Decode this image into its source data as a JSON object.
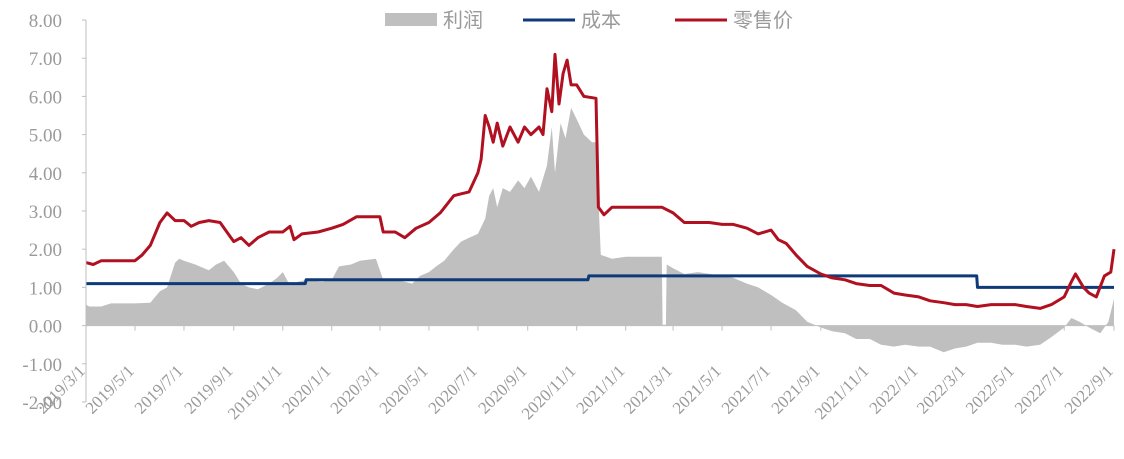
{
  "chart_data": {
    "type": "line",
    "x_dates": [
      "2019/3/1",
      "2019/5/1",
      "2019/7/1",
      "2019/9/1",
      "2019/11/1",
      "2020/1/1",
      "2020/3/1",
      "2020/5/1",
      "2020/7/1",
      "2020/9/1",
      "2020/11/1",
      "2021/1/1",
      "2021/3/1",
      "2021/5/1",
      "2021/7/1",
      "2021/9/1",
      "2021/11/1",
      "2022/1/1",
      "2022/3/1",
      "2022/5/1",
      "2022/7/1",
      "2022/9/1"
    ],
    "y_ticks": [
      "8.00",
      "7.00",
      "6.00",
      "5.00",
      "4.00",
      "3.00",
      "2.00",
      "1.00",
      "0.00",
      "-1.00",
      "-2.00"
    ],
    "ylim": [
      -2,
      8
    ],
    "legend_position": "top-center",
    "grid": false,
    "series": [
      {
        "name": "利润",
        "kind": "area",
        "color": "#bfbfbf",
        "points": [
          [
            "2019-03-01",
            0.55
          ],
          [
            "2019-03-05",
            0.5
          ],
          [
            "2019-03-20",
            0.5
          ],
          [
            "2019-04-01",
            0.58
          ],
          [
            "2019-05-01",
            0.58
          ],
          [
            "2019-05-20",
            0.6
          ],
          [
            "2019-06-01",
            0.9
          ],
          [
            "2019-06-10",
            1.0
          ],
          [
            "2019-06-20",
            1.65
          ],
          [
            "2019-06-25",
            1.75
          ],
          [
            "2019-07-01",
            1.7
          ],
          [
            "2019-07-15",
            1.6
          ],
          [
            "2019-08-01",
            1.45
          ],
          [
            "2019-08-10",
            1.6
          ],
          [
            "2019-08-20",
            1.7
          ],
          [
            "2019-09-01",
            1.4
          ],
          [
            "2019-09-10",
            1.1
          ],
          [
            "2019-09-20",
            1.0
          ],
          [
            "2019-10-01",
            0.95
          ],
          [
            "2019-10-15",
            1.1
          ],
          [
            "2019-10-25",
            1.25
          ],
          [
            "2019-11-01",
            1.4
          ],
          [
            "2019-11-10",
            1.05
          ],
          [
            "2019-11-20",
            1.15
          ],
          [
            "2019-12-01",
            1.2
          ],
          [
            "2019-12-20",
            1.15
          ],
          [
            "2020-01-01",
            1.2
          ],
          [
            "2020-01-10",
            1.55
          ],
          [
            "2020-01-25",
            1.6
          ],
          [
            "2020-02-05",
            1.7
          ],
          [
            "2020-02-25",
            1.75
          ],
          [
            "2020-03-05",
            1.2
          ],
          [
            "2020-03-20",
            1.2
          ],
          [
            "2020-04-01",
            1.15
          ],
          [
            "2020-04-10",
            1.1
          ],
          [
            "2020-04-20",
            1.3
          ],
          [
            "2020-05-01",
            1.4
          ],
          [
            "2020-05-10",
            1.55
          ],
          [
            "2020-05-20",
            1.7
          ],
          [
            "2020-06-01",
            2.0
          ],
          [
            "2020-06-10",
            2.2
          ],
          [
            "2020-06-20",
            2.3
          ],
          [
            "2020-07-01",
            2.4
          ],
          [
            "2020-07-10",
            2.8
          ],
          [
            "2020-07-15",
            3.4
          ],
          [
            "2020-07-20",
            3.6
          ],
          [
            "2020-07-25",
            3.1
          ],
          [
            "2020-08-01",
            3.6
          ],
          [
            "2020-08-10",
            3.5
          ],
          [
            "2020-08-20",
            3.8
          ],
          [
            "2020-08-28",
            3.6
          ],
          [
            "2020-09-05",
            3.9
          ],
          [
            "2020-09-15",
            3.5
          ],
          [
            "2020-09-25",
            4.2
          ],
          [
            "2020-10-01",
            5.2
          ],
          [
            "2020-10-05",
            4.0
          ],
          [
            "2020-10-12",
            5.3
          ],
          [
            "2020-10-18",
            4.9
          ],
          [
            "2020-10-25",
            5.7
          ],
          [
            "2020-11-01",
            5.4
          ],
          [
            "2020-11-10",
            5.0
          ],
          [
            "2020-11-20",
            4.8
          ],
          [
            "2020-11-25",
            4.8
          ],
          [
            "2020-12-01",
            1.85
          ],
          [
            "2020-12-15",
            1.75
          ],
          [
            "2021-01-01",
            1.8
          ],
          [
            "2021-02-15",
            1.8
          ],
          [
            "2021-02-16",
            0.02
          ],
          [
            "2021-02-20",
            0.02
          ],
          [
            "2021-02-21",
            1.6
          ],
          [
            "2021-03-01",
            1.5
          ],
          [
            "2021-03-15",
            1.35
          ],
          [
            "2021-04-01",
            1.4
          ],
          [
            "2021-05-01",
            1.3
          ],
          [
            "2021-05-15",
            1.25
          ],
          [
            "2021-06-01",
            1.1
          ],
          [
            "2021-06-15",
            1.0
          ],
          [
            "2021-07-01",
            0.8
          ],
          [
            "2021-07-15",
            0.6
          ],
          [
            "2021-08-01",
            0.4
          ],
          [
            "2021-08-15",
            0.1
          ],
          [
            "2021-09-01",
            -0.05
          ],
          [
            "2021-09-15",
            -0.15
          ],
          [
            "2021-10-01",
            -0.2
          ],
          [
            "2021-10-15",
            -0.35
          ],
          [
            "2021-11-01",
            -0.35
          ],
          [
            "2021-11-15",
            -0.5
          ],
          [
            "2021-12-01",
            -0.55
          ],
          [
            "2021-12-15",
            -0.5
          ],
          [
            "2022-01-01",
            -0.55
          ],
          [
            "2022-01-15",
            -0.55
          ],
          [
            "2022-02-01",
            -0.7
          ],
          [
            "2022-02-15",
            -0.6
          ],
          [
            "2022-03-01",
            -0.55
          ],
          [
            "2022-03-15",
            -0.45
          ],
          [
            "2022-04-01",
            -0.45
          ],
          [
            "2022-04-15",
            -0.5
          ],
          [
            "2022-05-01",
            -0.5
          ],
          [
            "2022-05-15",
            -0.55
          ],
          [
            "2022-06-01",
            -0.5
          ],
          [
            "2022-06-15",
            -0.3
          ],
          [
            "2022-07-01",
            -0.05
          ],
          [
            "2022-07-10",
            0.2
          ],
          [
            "2022-07-20",
            0.1
          ],
          [
            "2022-08-01",
            -0.05
          ],
          [
            "2022-08-15",
            -0.2
          ],
          [
            "2022-08-25",
            0.1
          ],
          [
            "2022-09-01",
            0.7
          ]
        ]
      },
      {
        "name": "成本",
        "kind": "line",
        "color": "#0f3a7a",
        "points": [
          [
            "2019-03-01",
            1.1
          ],
          [
            "2019-11-29",
            1.1
          ],
          [
            "2019-11-30",
            1.2
          ],
          [
            "2020-11-15",
            1.2
          ],
          [
            "2020-11-16",
            1.3
          ],
          [
            "2022-03-14",
            1.3
          ],
          [
            "2022-03-15",
            1.0
          ],
          [
            "2022-09-01",
            1.0
          ]
        ]
      },
      {
        "name": "零售价",
        "kind": "line",
        "color": "#b01020",
        "points": [
          [
            "2019-03-01",
            1.65
          ],
          [
            "2019-03-10",
            1.6
          ],
          [
            "2019-03-20",
            1.7
          ],
          [
            "2019-05-01",
            1.7
          ],
          [
            "2019-05-10",
            1.85
          ],
          [
            "2019-05-20",
            2.1
          ],
          [
            "2019-06-01",
            2.7
          ],
          [
            "2019-06-10",
            2.95
          ],
          [
            "2019-06-20",
            2.75
          ],
          [
            "2019-07-01",
            2.75
          ],
          [
            "2019-07-10",
            2.6
          ],
          [
            "2019-07-20",
            2.7
          ],
          [
            "2019-08-01",
            2.75
          ],
          [
            "2019-08-15",
            2.7
          ],
          [
            "2019-08-25",
            2.4
          ],
          [
            "2019-09-01",
            2.2
          ],
          [
            "2019-09-10",
            2.3
          ],
          [
            "2019-09-20",
            2.1
          ],
          [
            "2019-10-01",
            2.3
          ],
          [
            "2019-10-15",
            2.45
          ],
          [
            "2019-11-01",
            2.45
          ],
          [
            "2019-11-10",
            2.6
          ],
          [
            "2019-11-15",
            2.25
          ],
          [
            "2019-11-25",
            2.4
          ],
          [
            "2019-12-15",
            2.45
          ],
          [
            "2020-01-01",
            2.55
          ],
          [
            "2020-01-15",
            2.65
          ],
          [
            "2020-02-01",
            2.85
          ],
          [
            "2020-03-01",
            2.85
          ],
          [
            "2020-03-05",
            2.45
          ],
          [
            "2020-03-20",
            2.45
          ],
          [
            "2020-04-01",
            2.3
          ],
          [
            "2020-04-15",
            2.55
          ],
          [
            "2020-05-01",
            2.7
          ],
          [
            "2020-05-15",
            2.95
          ],
          [
            "2020-06-01",
            3.4
          ],
          [
            "2020-06-10",
            3.45
          ],
          [
            "2020-06-20",
            3.5
          ],
          [
            "2020-07-01",
            4.0
          ],
          [
            "2020-07-05",
            4.35
          ],
          [
            "2020-07-10",
            5.5
          ],
          [
            "2020-07-15",
            5.2
          ],
          [
            "2020-07-20",
            4.8
          ],
          [
            "2020-07-25",
            5.3
          ],
          [
            "2020-08-01",
            4.7
          ],
          [
            "2020-08-10",
            5.2
          ],
          [
            "2020-08-20",
            4.8
          ],
          [
            "2020-08-28",
            5.2
          ],
          [
            "2020-09-05",
            5.0
          ],
          [
            "2020-09-15",
            5.2
          ],
          [
            "2020-09-20",
            5.0
          ],
          [
            "2020-09-25",
            6.2
          ],
          [
            "2020-10-01",
            5.6
          ],
          [
            "2020-10-05",
            7.1
          ],
          [
            "2020-10-10",
            5.8
          ],
          [
            "2020-10-15",
            6.6
          ],
          [
            "2020-10-20",
            6.95
          ],
          [
            "2020-10-25",
            6.3
          ],
          [
            "2020-11-01",
            6.3
          ],
          [
            "2020-11-10",
            6.0
          ],
          [
            "2020-11-25",
            5.95
          ],
          [
            "2020-11-28",
            3.1
          ],
          [
            "2020-12-05",
            2.9
          ],
          [
            "2020-12-15",
            3.1
          ],
          [
            "2021-01-15",
            3.1
          ],
          [
            "2021-02-15",
            3.1
          ],
          [
            "2021-03-01",
            2.95
          ],
          [
            "2021-03-15",
            2.7
          ],
          [
            "2021-04-15",
            2.7
          ],
          [
            "2021-05-01",
            2.65
          ],
          [
            "2021-05-15",
            2.65
          ],
          [
            "2021-06-01",
            2.55
          ],
          [
            "2021-06-15",
            2.4
          ],
          [
            "2021-07-01",
            2.5
          ],
          [
            "2021-07-10",
            2.25
          ],
          [
            "2021-07-20",
            2.15
          ],
          [
            "2021-08-01",
            1.85
          ],
          [
            "2021-08-15",
            1.55
          ],
          [
            "2021-09-01",
            1.35
          ],
          [
            "2021-09-15",
            1.25
          ],
          [
            "2021-10-01",
            1.2
          ],
          [
            "2021-10-15",
            1.1
          ],
          [
            "2021-11-01",
            1.05
          ],
          [
            "2021-11-15",
            1.05
          ],
          [
            "2021-12-01",
            0.85
          ],
          [
            "2021-12-15",
            0.8
          ],
          [
            "2022-01-01",
            0.75
          ],
          [
            "2022-01-15",
            0.65
          ],
          [
            "2022-02-01",
            0.6
          ],
          [
            "2022-02-15",
            0.55
          ],
          [
            "2022-03-01",
            0.55
          ],
          [
            "2022-03-15",
            0.5
          ],
          [
            "2022-04-01",
            0.55
          ],
          [
            "2022-05-01",
            0.55
          ],
          [
            "2022-05-15",
            0.5
          ],
          [
            "2022-06-01",
            0.45
          ],
          [
            "2022-06-15",
            0.55
          ],
          [
            "2022-07-01",
            0.75
          ],
          [
            "2022-07-10",
            1.15
          ],
          [
            "2022-07-15",
            1.35
          ],
          [
            "2022-07-25",
            1.0
          ],
          [
            "2022-08-01",
            0.85
          ],
          [
            "2022-08-10",
            0.75
          ],
          [
            "2022-08-20",
            1.3
          ],
          [
            "2022-08-28",
            1.4
          ],
          [
            "2022-09-01",
            2.0
          ]
        ]
      }
    ]
  }
}
